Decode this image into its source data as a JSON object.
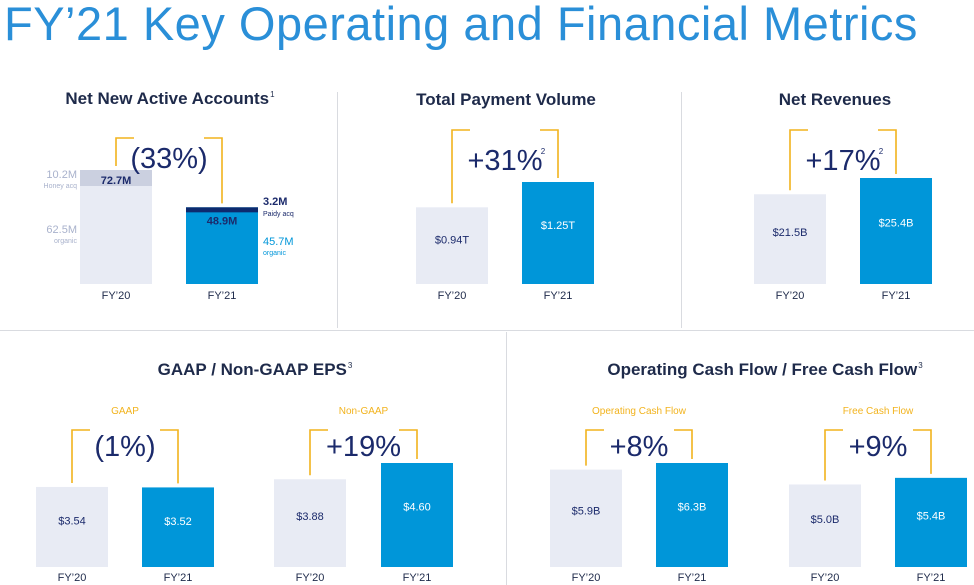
{
  "title": "FY’21 Key Operating and Financial Metrics",
  "colors": {
    "title": "#2a8fd8",
    "navy": "#1b2a6b",
    "bar_prior": "#e8ebf4",
    "bar_current": "#0096d9",
    "bar_current_dark": "#0d2a6e",
    "bracket": "#f2b31d",
    "muted_text": "#a9b2cc",
    "muted_bar": "#cbd0e0",
    "current_label": "#0096d9"
  },
  "panels": {
    "nna": {
      "title": "Net New Active Accounts",
      "footnote": "1"
    },
    "tpv": {
      "title": "Total Payment Volume",
      "footnote": ""
    },
    "rev": {
      "title": "Net Revenues",
      "footnote": ""
    },
    "eps": {
      "title": "GAAP / Non-GAAP EPS",
      "footnote": "3"
    },
    "cf": {
      "title": "Operating Cash Flow / Free Cash Flow",
      "footnote": "3"
    }
  },
  "chart_data": [
    {
      "id": "nna",
      "type": "bar",
      "unit": "M",
      "categories": [
        "FY’20",
        "FY’21"
      ],
      "values": [
        72.7,
        48.9
      ],
      "value_labels": [
        "72.7M",
        "48.9M"
      ],
      "change": "(33%)",
      "change_footnote": "",
      "components": {
        "FY’20": [
          {
            "name": "Honey acq",
            "value": 10.2,
            "label": "10.2M"
          },
          {
            "name": "organic",
            "value": 62.5,
            "label": "62.5M"
          }
        ],
        "FY’21": [
          {
            "name": "Paidy acq",
            "value": 3.2,
            "label": "3.2M"
          },
          {
            "name": "organic",
            "value": 45.7,
            "label": "45.7M"
          }
        ]
      },
      "ylim": [
        0,
        72.7
      ]
    },
    {
      "id": "tpv",
      "type": "bar",
      "unit": "T",
      "categories": [
        "FY’20",
        "FY’21"
      ],
      "values": [
        0.94,
        1.25
      ],
      "value_labels": [
        "$0.94T",
        "$1.25T"
      ],
      "change": "+31%",
      "change_footnote": "2",
      "ylim": [
        0,
        1.25
      ]
    },
    {
      "id": "rev",
      "type": "bar",
      "unit": "B",
      "categories": [
        "FY’20",
        "FY’21"
      ],
      "values": [
        21.5,
        25.4
      ],
      "value_labels": [
        "$21.5B",
        "$25.4B"
      ],
      "change": "+17%",
      "change_footnote": "2",
      "ylim": [
        0,
        25.4
      ]
    },
    {
      "id": "eps_gaap",
      "type": "bar",
      "group_label": "GAAP",
      "categories": [
        "FY’20",
        "FY’21"
      ],
      "values": [
        3.54,
        3.52
      ],
      "value_labels": [
        "$3.54",
        "$3.52"
      ],
      "change": "(1%)",
      "change_footnote": "",
      "ylim": [
        0,
        4.6
      ]
    },
    {
      "id": "eps_nongaap",
      "type": "bar",
      "group_label": "Non-GAAP",
      "categories": [
        "FY’20",
        "FY’21"
      ],
      "values": [
        3.88,
        4.6
      ],
      "value_labels": [
        "$3.88",
        "$4.60"
      ],
      "change": "+19%",
      "change_footnote": "",
      "ylim": [
        0,
        4.6
      ]
    },
    {
      "id": "ocf",
      "type": "bar",
      "group_label": "Operating Cash Flow",
      "categories": [
        "FY’20",
        "FY’21"
      ],
      "values": [
        5.9,
        6.3
      ],
      "value_labels": [
        "$5.9B",
        "$6.3B"
      ],
      "change": "+8%",
      "change_footnote": "",
      "ylim": [
        0,
        6.3
      ]
    },
    {
      "id": "fcf",
      "type": "bar",
      "group_label": "Free Cash Flow",
      "categories": [
        "FY’20",
        "FY’21"
      ],
      "values": [
        5.0,
        5.4
      ],
      "value_labels": [
        "$5.0B",
        "$5.4B"
      ],
      "change": "+9%",
      "change_footnote": "",
      "ylim": [
        0,
        6.3
      ]
    }
  ]
}
